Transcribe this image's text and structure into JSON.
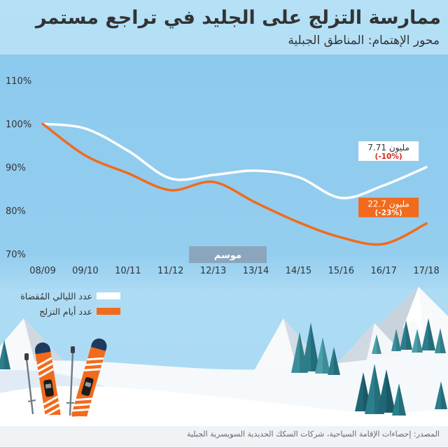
{
  "chart_data": {
    "type": "line",
    "title": "ممارسة التزلج على الجليد في تراجع مستمر",
    "subtitle": "محور الإهتمام: المناطق الجبلية",
    "x": [
      "08/09",
      "09/10",
      "10/11",
      "11/12",
      "12/13",
      "13/14",
      "14/15",
      "15/16",
      "16/17",
      "17/18"
    ],
    "xlabel": "موسم",
    "ylabel": "",
    "ylim": [
      70,
      110
    ],
    "y_ticks": [
      110,
      100,
      90,
      80,
      70
    ],
    "y_tick_labels": [
      "110%",
      "100%",
      "90%",
      "80%",
      "70%"
    ],
    "grid": false,
    "legend_position": "bottom-left",
    "series": [
      {
        "name": "عدد الليالي المُقضاة",
        "color": "#ffffff",
        "values": [
          100,
          98.9,
          93.8,
          87.4,
          88.2,
          89.2,
          87.7,
          82.9,
          85.8,
          90
        ],
        "end_value_label": "7.71 مليون",
        "end_change_label": "(-10%)",
        "label_text_color": "#333333",
        "change_text_color": "#d7261b"
      },
      {
        "name": "عدد أيام التزلج",
        "color": "#f26a1b",
        "values": [
          100,
          92.7,
          88.6,
          84.7,
          86.6,
          81.8,
          77.3,
          73.8,
          72.3,
          77
        ],
        "end_value_label": "22.7 مليون",
        "end_change_label": "(-23%)",
        "label_text_color": "#ffffff",
        "change_text_color": "#ffffff"
      }
    ]
  },
  "source": "المصدر: إحصاءات الإقامة السياحية، شركات السكك الحديدية السويسرية الجبلية"
}
